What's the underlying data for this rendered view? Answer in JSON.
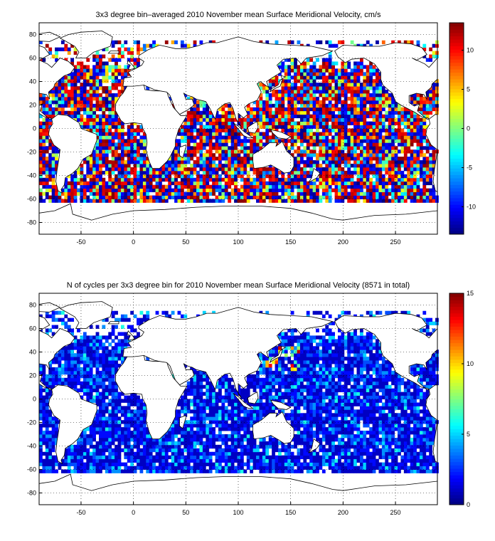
{
  "chart_data": [
    {
      "type": "heatmap",
      "title": "3x3 degree bin–averaged 2010 November mean Surface Meridional Velocity, cm/s",
      "xlabel": "",
      "ylabel": "",
      "xlim": [
        -90,
        290
      ],
      "ylim": [
        -90,
        90
      ],
      "xticks": [
        -50,
        0,
        50,
        100,
        150,
        200,
        250
      ],
      "yticks": [
        -80,
        -60,
        -40,
        -20,
        0,
        20,
        40,
        60,
        80
      ],
      "grid": true,
      "colormap": "jet",
      "bin_size_deg": 3,
      "clim": [
        -13.5,
        13.5
      ],
      "colorbar_ticks": [
        -10,
        -5,
        0,
        5,
        10
      ],
      "values": "dense 3x3-degree grid of bin-averaged values over ocean areas (approx. 60S to 75N), ranging about -13 to +13 cm/s"
    },
    {
      "type": "heatmap",
      "title": "N of cycles per 3x3 degree bin for 2010 November mean Surface Meridional Velocity (8571 in total)",
      "xlabel": "",
      "ylabel": "",
      "xlim": [
        -90,
        290
      ],
      "ylim": [
        -90,
        90
      ],
      "xticks": [
        -50,
        0,
        50,
        100,
        150,
        200,
        250
      ],
      "yticks": [
        -80,
        -60,
        -40,
        -20,
        0,
        20,
        40,
        60,
        80
      ],
      "grid": true,
      "colormap": "jet",
      "bin_size_deg": 3,
      "clim": [
        0,
        15
      ],
      "colorbar_ticks": [
        0,
        5,
        10,
        15
      ],
      "total_cycles": 8571,
      "values": "dense 3x3-degree grid of cycle counts over ocean areas, mostly 1-5, maximum about 15 near Japan"
    }
  ]
}
